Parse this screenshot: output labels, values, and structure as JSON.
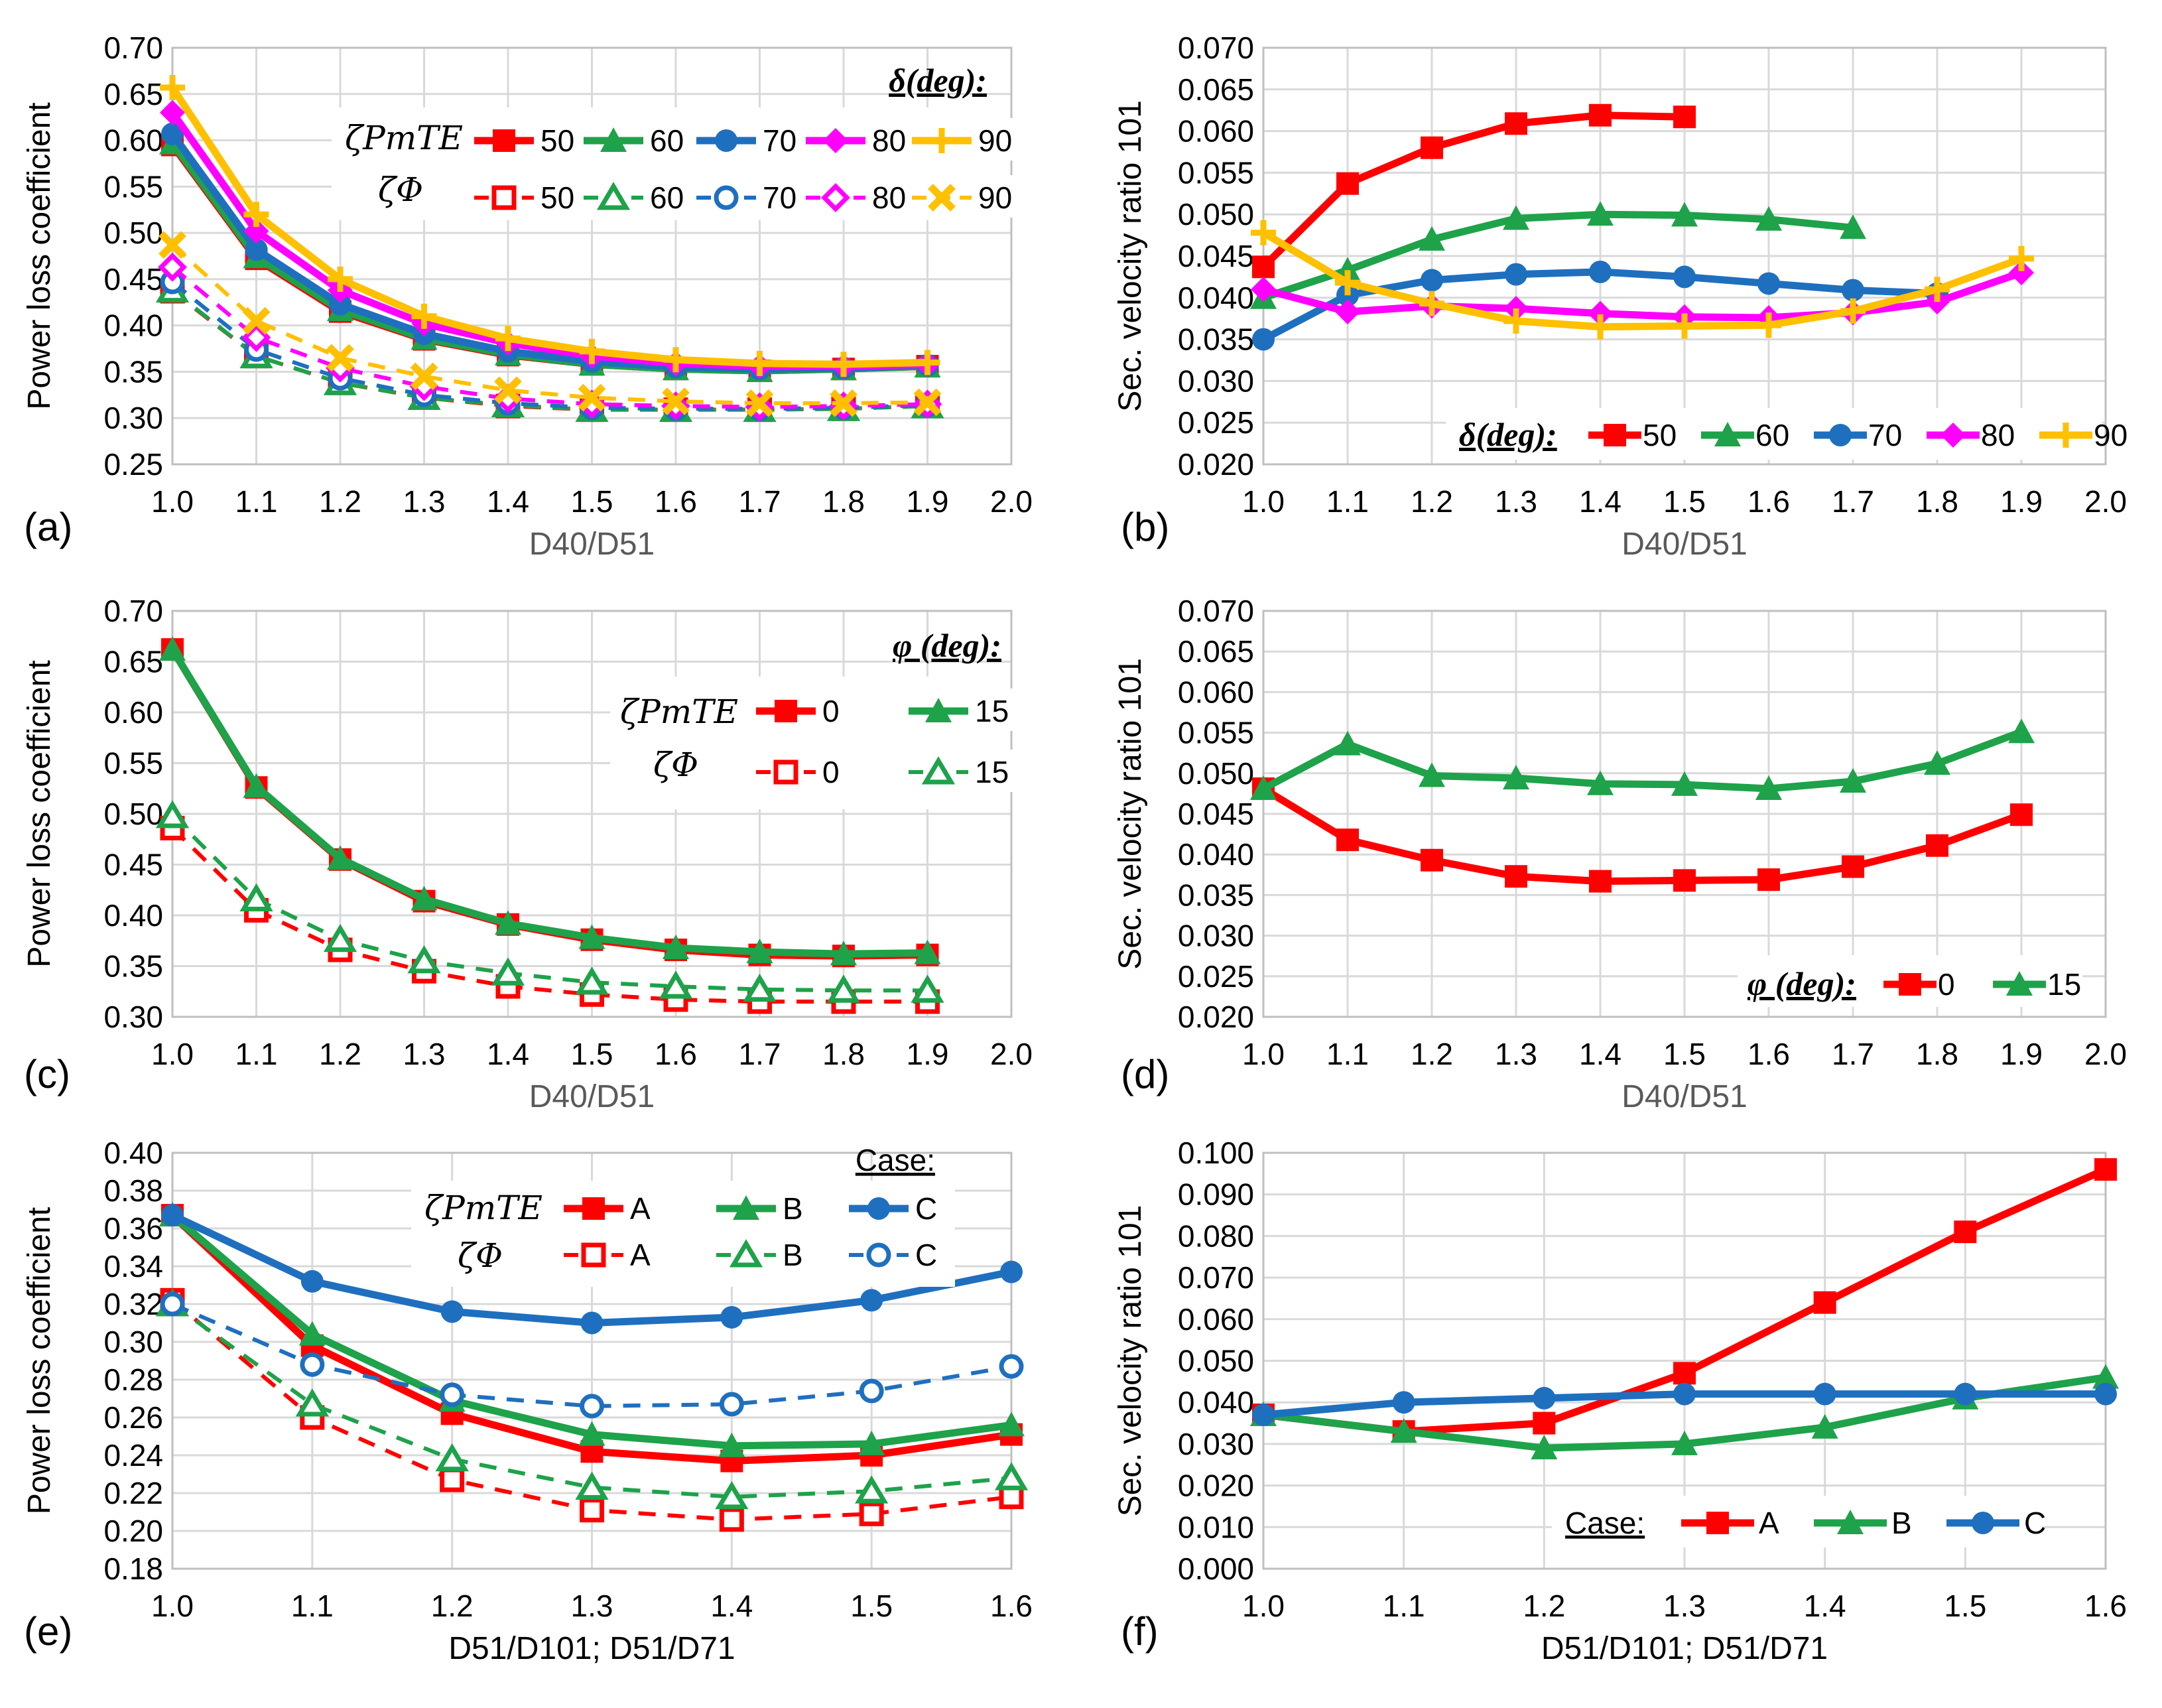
{
  "colors": {
    "red": "#ff0000",
    "green": "#1ea24a",
    "blue": "#1f6fbf",
    "magenta": "#ff00ff",
    "gold": "#ffc000",
    "grid": "#d9d9d9",
    "axis": "#bfbfbf"
  },
  "legend_symbols": {
    "zeta_pm": "ζPmTE",
    "zeta_phi": "ζΦ"
  },
  "chart_data": [
    {
      "id": "a",
      "panel_label": "(a)",
      "type": "line",
      "xlabel": "D40/D51",
      "ylabel": "Power loss coefficient",
      "xlim": [
        1.0,
        2.0
      ],
      "ylim": [
        0.25,
        0.7
      ],
      "xticks": [
        "1.0",
        "1.1",
        "1.2",
        "1.3",
        "1.4",
        "1.5",
        "1.6",
        "1.7",
        "1.8",
        "1.9",
        "2.0"
      ],
      "yticks": [
        "0.25",
        "0.30",
        "0.35",
        "0.40",
        "0.45",
        "0.50",
        "0.55",
        "0.60",
        "0.65",
        "0.70"
      ],
      "legend_title": "δ(deg):",
      "x": [
        1.0,
        1.1,
        1.2,
        1.3,
        1.4,
        1.5,
        1.6,
        1.7,
        1.8,
        1.9
      ],
      "series": [
        {
          "name": "50",
          "group": "ζPmTE",
          "color": "red",
          "marker": "square",
          "dashed": false,
          "values": [
            0.595,
            0.472,
            0.415,
            0.385,
            0.368,
            0.358,
            0.353,
            0.351,
            0.353,
            0.356
          ]
        },
        {
          "name": "60",
          "group": "ζPmTE",
          "color": "green",
          "marker": "triangle",
          "dashed": false,
          "values": [
            0.597,
            0.474,
            0.417,
            0.386,
            0.369,
            0.358,
            0.353,
            0.351,
            0.353,
            0.356
          ]
        },
        {
          "name": "70",
          "group": "ζPmTE",
          "color": "blue",
          "marker": "circle",
          "dashed": false,
          "values": [
            0.607,
            0.482,
            0.423,
            0.391,
            0.372,
            0.361,
            0.355,
            0.353,
            0.354,
            0.357
          ]
        },
        {
          "name": "80",
          "group": "ζPmTE",
          "color": "magenta",
          "marker": "diamond",
          "dashed": false,
          "values": [
            0.63,
            0.502,
            0.438,
            0.402,
            0.381,
            0.367,
            0.359,
            0.356,
            0.356,
            0.358
          ]
        },
        {
          "name": "90",
          "group": "ζPmTE",
          "color": "gold",
          "marker": "plus",
          "dashed": false,
          "values": [
            0.657,
            0.52,
            0.45,
            0.41,
            0.386,
            0.372,
            0.363,
            0.359,
            0.358,
            0.36
          ]
        },
        {
          "name": "50",
          "group": "ζΦ",
          "color": "red",
          "marker": "square-open",
          "dashed": true,
          "values": [
            0.437,
            0.367,
            0.338,
            0.322,
            0.313,
            0.309,
            0.309,
            0.309,
            0.31,
            0.313
          ]
        },
        {
          "name": "60",
          "group": "ζΦ",
          "color": "green",
          "marker": "triangle-open",
          "dashed": true,
          "values": [
            0.438,
            0.367,
            0.338,
            0.322,
            0.314,
            0.309,
            0.309,
            0.309,
            0.31,
            0.313
          ]
        },
        {
          "name": "70",
          "group": "ζΦ",
          "color": "blue",
          "marker": "circle-open",
          "dashed": true,
          "values": [
            0.447,
            0.374,
            0.343,
            0.325,
            0.316,
            0.311,
            0.31,
            0.31,
            0.311,
            0.314
          ]
        },
        {
          "name": "80",
          "group": "ζΦ",
          "color": "magenta",
          "marker": "diamond-open",
          "dashed": true,
          "values": [
            0.463,
            0.387,
            0.354,
            0.334,
            0.321,
            0.315,
            0.313,
            0.312,
            0.313,
            0.315
          ]
        },
        {
          "name": "90",
          "group": "ζΦ",
          "color": "gold",
          "marker": "x",
          "dashed": true,
          "values": [
            0.487,
            0.405,
            0.365,
            0.345,
            0.33,
            0.322,
            0.318,
            0.316,
            0.316,
            0.317
          ]
        }
      ]
    },
    {
      "id": "b",
      "panel_label": "(b)",
      "type": "line",
      "xlabel": "D40/D51",
      "ylabel": "Sec. velocity ratio 101",
      "xlim": [
        1.0,
        2.0
      ],
      "ylim": [
        0.02,
        0.07
      ],
      "xticks": [
        "1.0",
        "1.1",
        "1.2",
        "1.3",
        "1.4",
        "1.5",
        "1.6",
        "1.7",
        "1.8",
        "1.9",
        "2.0"
      ],
      "yticks": [
        "0.020",
        "0.025",
        "0.030",
        "0.035",
        "0.040",
        "0.045",
        "0.050",
        "0.055",
        "0.060",
        "0.065",
        "0.070"
      ],
      "legend_title": "δ(deg):",
      "series": [
        {
          "name": "50",
          "color": "red",
          "marker": "square",
          "x": [
            1.0,
            1.1,
            1.2,
            1.3,
            1.4,
            1.5
          ],
          "values": [
            0.0437,
            0.0537,
            0.058,
            0.0609,
            0.0619,
            0.0617
          ]
        },
        {
          "name": "60",
          "color": "green",
          "marker": "triangle",
          "x": [
            1.0,
            1.1,
            1.2,
            1.3,
            1.4,
            1.5,
            1.6,
            1.7
          ],
          "values": [
            0.04,
            0.0433,
            0.047,
            0.0495,
            0.05,
            0.0499,
            0.0494,
            0.0484
          ]
        },
        {
          "name": "70",
          "color": "blue",
          "marker": "circle",
          "x": [
            1.0,
            1.1,
            1.2,
            1.3,
            1.4,
            1.5,
            1.6,
            1.7,
            1.8
          ],
          "values": [
            0.035,
            0.0403,
            0.0421,
            0.0428,
            0.0431,
            0.0425,
            0.0417,
            0.0409,
            0.0405
          ]
        },
        {
          "name": "80",
          "color": "magenta",
          "marker": "diamond",
          "x": [
            1.0,
            1.1,
            1.2,
            1.3,
            1.4,
            1.5,
            1.6,
            1.7,
            1.8,
            1.9
          ],
          "values": [
            0.041,
            0.0383,
            0.039,
            0.0387,
            0.0381,
            0.0377,
            0.0376,
            0.0382,
            0.0395,
            0.043
          ]
        },
        {
          "name": "90",
          "color": "gold",
          "marker": "plus",
          "x": [
            1.0,
            1.1,
            1.2,
            1.3,
            1.4,
            1.5,
            1.6,
            1.7,
            1.8,
            1.9
          ],
          "values": [
            0.0478,
            0.0418,
            0.0393,
            0.0372,
            0.0365,
            0.0366,
            0.0367,
            0.0384,
            0.041,
            0.0447
          ]
        }
      ]
    },
    {
      "id": "c",
      "panel_label": "(c)",
      "type": "line",
      "xlabel": "D40/D51",
      "ylabel": "Power loss coefficient",
      "xlim": [
        1.0,
        2.0
      ],
      "ylim": [
        0.3,
        0.7
      ],
      "xticks": [
        "1.0",
        "1.1",
        "1.2",
        "1.3",
        "1.4",
        "1.5",
        "1.6",
        "1.7",
        "1.8",
        "1.9",
        "2.0"
      ],
      "yticks": [
        "0.30",
        "0.35",
        "0.40",
        "0.45",
        "0.50",
        "0.55",
        "0.60",
        "0.65",
        "0.70"
      ],
      "legend_title": "φ (deg):",
      "x": [
        1.0,
        1.1,
        1.2,
        1.3,
        1.4,
        1.5,
        1.6,
        1.7,
        1.8,
        1.9
      ],
      "series": [
        {
          "name": "0",
          "group": "ζPmTE",
          "color": "red",
          "marker": "square",
          "dashed": false,
          "values": [
            0.662,
            0.526,
            0.455,
            0.414,
            0.391,
            0.376,
            0.366,
            0.361,
            0.36,
            0.361
          ]
        },
        {
          "name": "15",
          "group": "ζPmTE",
          "color": "green",
          "marker": "triangle",
          "dashed": false,
          "values": [
            0.662,
            0.527,
            0.456,
            0.416,
            0.392,
            0.378,
            0.368,
            0.364,
            0.362,
            0.363
          ]
        },
        {
          "name": "0",
          "group": "ζΦ",
          "color": "red",
          "marker": "square-open",
          "dashed": true,
          "values": [
            0.486,
            0.405,
            0.366,
            0.345,
            0.33,
            0.322,
            0.317,
            0.315,
            0.315,
            0.315
          ]
        },
        {
          "name": "15",
          "group": "ζΦ",
          "color": "green",
          "marker": "triangle-open",
          "dashed": true,
          "values": [
            0.498,
            0.416,
            0.376,
            0.355,
            0.343,
            0.334,
            0.33,
            0.327,
            0.326,
            0.326
          ]
        }
      ]
    },
    {
      "id": "d",
      "panel_label": "(d)",
      "type": "line",
      "xlabel": "D40/D51",
      "ylabel": "Sec. velocity ratio 101",
      "xlim": [
        1.0,
        2.0
      ],
      "ylim": [
        0.02,
        0.07
      ],
      "xticks": [
        "1.0",
        "1.1",
        "1.2",
        "1.3",
        "1.4",
        "1.5",
        "1.6",
        "1.7",
        "1.8",
        "1.9",
        "2.0"
      ],
      "yticks": [
        "0.020",
        "0.025",
        "0.030",
        "0.035",
        "0.040",
        "0.045",
        "0.050",
        "0.055",
        "0.060",
        "0.065",
        "0.070"
      ],
      "legend_title": "φ (deg):",
      "x": [
        1.0,
        1.1,
        1.2,
        1.3,
        1.4,
        1.5,
        1.6,
        1.7,
        1.8,
        1.9
      ],
      "series": [
        {
          "name": "0",
          "color": "red",
          "marker": "square",
          "values": [
            0.0481,
            0.0418,
            0.0393,
            0.0373,
            0.0367,
            0.0368,
            0.0369,
            0.0385,
            0.0411,
            0.0449
          ]
        },
        {
          "name": "15",
          "color": "green",
          "marker": "triangle",
          "values": [
            0.0481,
            0.0536,
            0.0497,
            0.0494,
            0.0487,
            0.0486,
            0.0481,
            0.049,
            0.0512,
            0.0551
          ]
        }
      ]
    },
    {
      "id": "e",
      "panel_label": "(e)",
      "type": "line",
      "xlabel": "D51/D101; D51/D71",
      "ylabel": "Power loss coefficient",
      "xlim": [
        1.0,
        1.6
      ],
      "ylim": [
        0.18,
        0.4
      ],
      "xticks": [
        "1.0",
        "1.1",
        "1.2",
        "1.3",
        "1.4",
        "1.5",
        "1.6"
      ],
      "yticks": [
        "0.18",
        "0.20",
        "0.22",
        "0.24",
        "0.26",
        "0.28",
        "0.30",
        "0.32",
        "0.34",
        "0.36",
        "0.38",
        "0.40"
      ],
      "legend_title": "Case:",
      "x": [
        1.0,
        1.1,
        1.2,
        1.3,
        1.4,
        1.5,
        1.6
      ],
      "series": [
        {
          "name": "A",
          "group": "ζPmTE",
          "color": "red",
          "marker": "square",
          "dashed": false,
          "values": [
            0.367,
            0.298,
            0.262,
            0.242,
            0.237,
            0.24,
            0.251
          ]
        },
        {
          "name": "B",
          "group": "ζPmTE",
          "color": "green",
          "marker": "triangle",
          "dashed": false,
          "values": [
            0.367,
            0.304,
            0.269,
            0.251,
            0.245,
            0.246,
            0.256
          ]
        },
        {
          "name": "C",
          "group": "ζPmTE",
          "color": "blue",
          "marker": "circle",
          "dashed": false,
          "values": [
            0.367,
            0.332,
            0.316,
            0.31,
            0.313,
            0.322,
            0.337
          ]
        },
        {
          "name": "A",
          "group": "ζΦ",
          "color": "red",
          "marker": "square-open",
          "dashed": true,
          "values": [
            0.322,
            0.26,
            0.227,
            0.211,
            0.206,
            0.209,
            0.218
          ]
        },
        {
          "name": "B",
          "group": "ζΦ",
          "color": "green",
          "marker": "triangle-open",
          "dashed": true,
          "values": [
            0.32,
            0.267,
            0.238,
            0.223,
            0.218,
            0.221,
            0.228
          ]
        },
        {
          "name": "C",
          "group": "ζΦ",
          "color": "blue",
          "marker": "circle-open",
          "dashed": true,
          "values": [
            0.32,
            0.288,
            0.272,
            0.266,
            0.267,
            0.274,
            0.287
          ]
        }
      ]
    },
    {
      "id": "f",
      "panel_label": "(f)",
      "type": "line",
      "xlabel": "D51/D101; D51/D71",
      "ylabel": "Sec. velocity ratio 101",
      "xlim": [
        1.0,
        1.6
      ],
      "ylim": [
        0.0,
        0.1
      ],
      "xticks": [
        "1.0",
        "1.1",
        "1.2",
        "1.3",
        "1.4",
        "1.5",
        "1.6"
      ],
      "yticks": [
        "0.000",
        "0.010",
        "0.020",
        "0.030",
        "0.040",
        "0.050",
        "0.060",
        "0.070",
        "0.080",
        "0.090",
        "0.100"
      ],
      "legend_title": "Case:",
      "x": [
        1.0,
        1.1,
        1.2,
        1.3,
        1.4,
        1.5,
        1.6
      ],
      "series": [
        {
          "name": "A",
          "color": "red",
          "marker": "square",
          "values": [
            0.037,
            0.033,
            0.035,
            0.047,
            0.064,
            0.081,
            0.096
          ]
        },
        {
          "name": "B",
          "color": "green",
          "marker": "triangle",
          "values": [
            0.037,
            0.033,
            0.029,
            0.03,
            0.034,
            0.041,
            0.046
          ]
        },
        {
          "name": "C",
          "color": "blue",
          "marker": "circle",
          "values": [
            0.037,
            0.04,
            0.041,
            0.042,
            0.042,
            0.042,
            0.042
          ]
        }
      ]
    }
  ]
}
